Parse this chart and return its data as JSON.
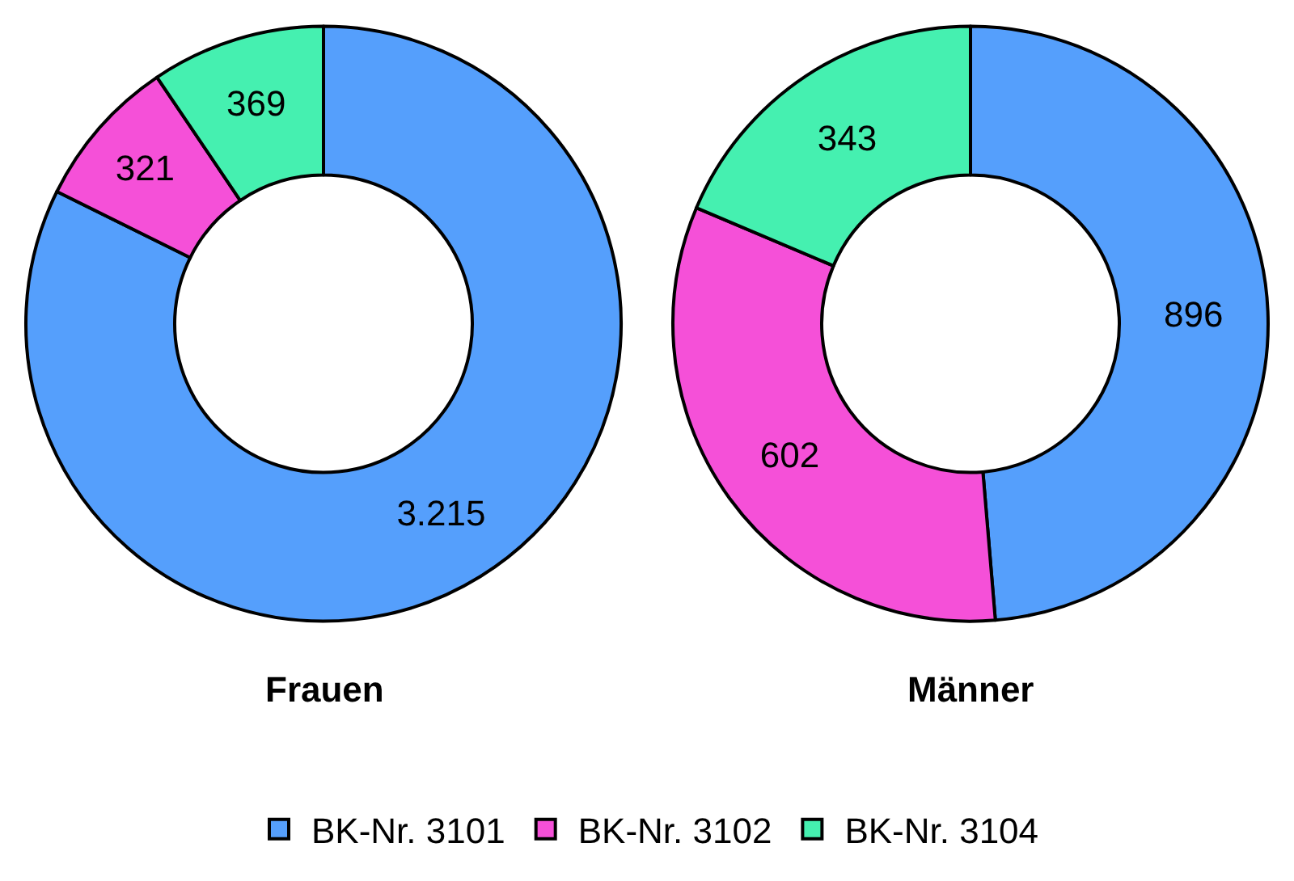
{
  "chart_data": [
    {
      "type": "donut",
      "title": "Frauen",
      "categories": [
        "BK-Nr. 3101",
        "BK-Nr. 3102",
        "BK-Nr. 3104"
      ],
      "values": [
        3215,
        321,
        369
      ],
      "value_labels": [
        "3.215",
        "321",
        "369"
      ],
      "colors": [
        "#559ffc",
        "#f550d8",
        "#45f0b0"
      ],
      "legend": "bottom"
    },
    {
      "type": "donut",
      "title": "Männer",
      "categories": [
        null,
        null,
        null
      ],
      "values": [
        896,
        602,
        343
      ],
      "value_labels": [
        "896",
        "602",
        "343"
      ],
      "colors": [
        "#559ffc",
        "#f550d8",
        "#45f0b0"
      ]
    }
  ]
}
